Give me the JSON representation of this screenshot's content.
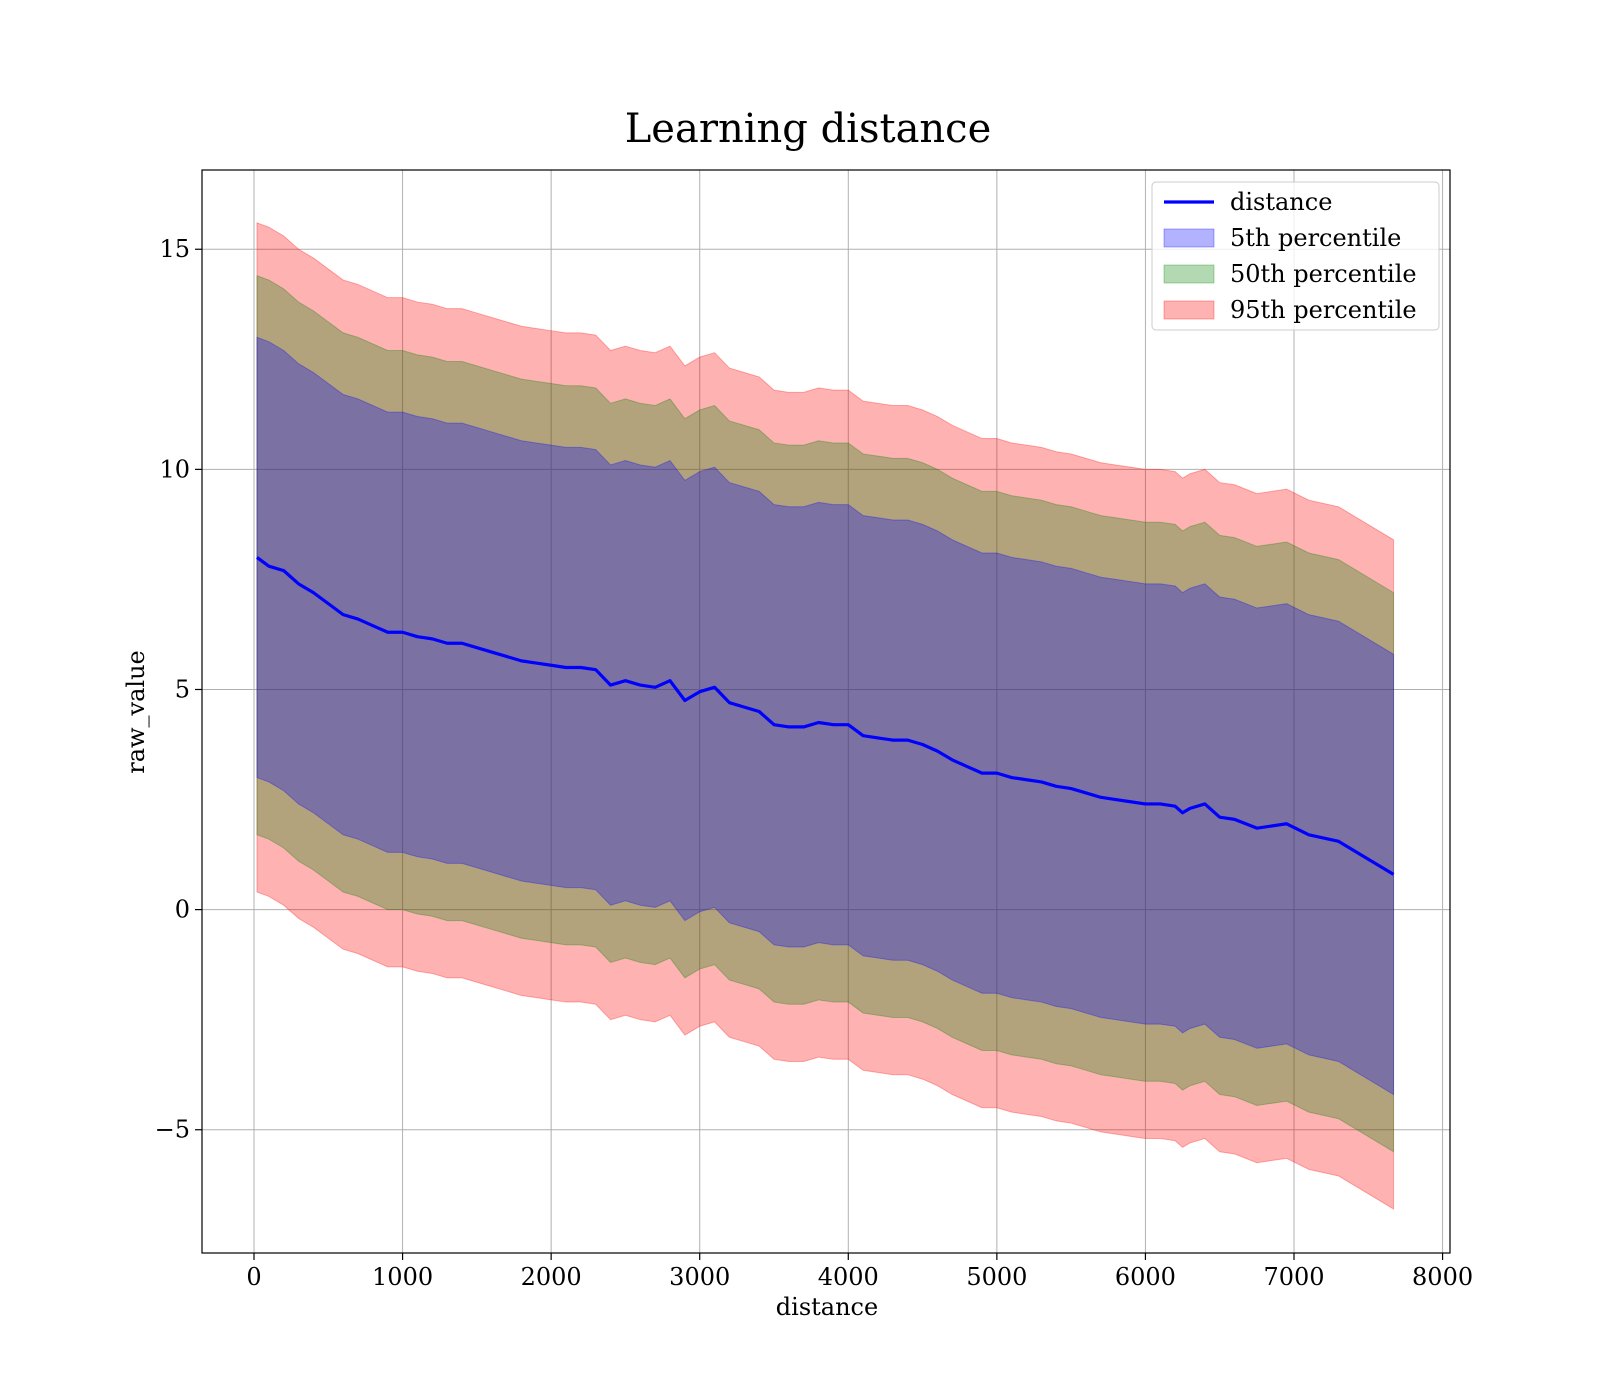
{
  "chart_data": {
    "type": "area",
    "title": "Learning distance",
    "xlabel": "distance",
    "ylabel": "raw_value",
    "xlim": [
      -350,
      8050
    ],
    "ylim": [
      -7.8,
      16.8
    ],
    "xticks": [
      0,
      1000,
      2000,
      3000,
      4000,
      5000,
      6000,
      7000,
      8000
    ],
    "xtick_labels": [
      "0",
      "1000",
      "2000",
      "3000",
      "4000",
      "5000",
      "6000",
      "7000",
      "8000"
    ],
    "yticks": [
      -5,
      0,
      5,
      10,
      15
    ],
    "ytick_labels": [
      "−5",
      "0",
      "5",
      "10",
      "15"
    ],
    "grid": true,
    "legend_position": "top-right",
    "legend": [
      {
        "label": "distance",
        "kind": "line",
        "color": "#0000ff"
      },
      {
        "label": "5th percentile",
        "kind": "patch",
        "color": "#0000ff"
      },
      {
        "label": "50th percentile",
        "kind": "patch",
        "color": "#008000"
      },
      {
        "label": "95th percentile",
        "kind": "patch",
        "color": "#ff0000"
      }
    ],
    "x": [
      20,
      100,
      200,
      300,
      400,
      500,
      600,
      700,
      800,
      900,
      1000,
      1100,
      1200,
      1300,
      1400,
      1500,
      1600,
      1700,
      1800,
      1900,
      2000,
      2100,
      2200,
      2300,
      2400,
      2500,
      2600,
      2700,
      2800,
      2900,
      3000,
      3100,
      3200,
      3300,
      3400,
      3500,
      3600,
      3700,
      3800,
      3900,
      4000,
      4100,
      4200,
      4300,
      4400,
      4500,
      4600,
      4700,
      4800,
      4900,
      5000,
      5100,
      5200,
      5300,
      5400,
      5500,
      5600,
      5700,
      5800,
      5900,
      6000,
      6100,
      6200,
      6250,
      6300,
      6400,
      6500,
      6600,
      6750,
      6950,
      7100,
      7300,
      7670
    ],
    "series": [
      {
        "name": "distance",
        "color": "#0000ff",
        "values": [
          8.0,
          7.8,
          7.7,
          7.4,
          7.2,
          6.95,
          6.7,
          6.6,
          6.45,
          6.3,
          6.3,
          6.2,
          6.15,
          6.05,
          6.05,
          5.95,
          5.85,
          5.75,
          5.65,
          5.6,
          5.55,
          5.5,
          5.5,
          5.45,
          5.1,
          5.2,
          5.1,
          5.05,
          5.2,
          4.75,
          4.95,
          5.05,
          4.7,
          4.6,
          4.5,
          4.2,
          4.15,
          4.15,
          4.25,
          4.2,
          4.2,
          3.95,
          3.9,
          3.85,
          3.85,
          3.75,
          3.6,
          3.4,
          3.25,
          3.1,
          3.1,
          3.0,
          2.95,
          2.9,
          2.8,
          2.75,
          2.65,
          2.55,
          2.5,
          2.45,
          2.4,
          2.4,
          2.35,
          2.2,
          2.3,
          2.4,
          2.1,
          2.05,
          1.85,
          1.95,
          1.7,
          1.55,
          0.8
        ]
      },
      {
        "name": "5th percentile",
        "color": "#0000ff",
        "upper": [
          13.0,
          12.9,
          12.7,
          12.4,
          12.2,
          11.95,
          11.7,
          11.6,
          11.45,
          11.3,
          11.3,
          11.2,
          11.15,
          11.05,
          11.05,
          10.95,
          10.85,
          10.75,
          10.65,
          10.6,
          10.55,
          10.5,
          10.5,
          10.45,
          10.1,
          10.2,
          10.1,
          10.05,
          10.2,
          9.75,
          9.95,
          10.05,
          9.7,
          9.6,
          9.5,
          9.2,
          9.15,
          9.15,
          9.25,
          9.2,
          9.2,
          8.95,
          8.9,
          8.85,
          8.85,
          8.75,
          8.6,
          8.4,
          8.25,
          8.1,
          8.1,
          8.0,
          7.95,
          7.9,
          7.8,
          7.75,
          7.65,
          7.55,
          7.5,
          7.45,
          7.4,
          7.4,
          7.35,
          7.2,
          7.3,
          7.4,
          7.1,
          7.05,
          6.85,
          6.95,
          6.7,
          6.55,
          5.8
        ],
        "lower": [
          3.0,
          2.9,
          2.7,
          2.4,
          2.2,
          1.95,
          1.7,
          1.6,
          1.45,
          1.3,
          1.3,
          1.2,
          1.15,
          1.05,
          1.05,
          0.95,
          0.85,
          0.75,
          0.65,
          0.6,
          0.55,
          0.5,
          0.5,
          0.45,
          0.1,
          0.2,
          0.1,
          0.05,
          0.2,
          -0.25,
          -0.05,
          0.05,
          -0.3,
          -0.4,
          -0.5,
          -0.8,
          -0.85,
          -0.85,
          -0.75,
          -0.8,
          -0.8,
          -1.05,
          -1.1,
          -1.15,
          -1.15,
          -1.25,
          -1.4,
          -1.6,
          -1.75,
          -1.9,
          -1.9,
          -2.0,
          -2.05,
          -2.1,
          -2.2,
          -2.25,
          -2.35,
          -2.45,
          -2.5,
          -2.55,
          -2.6,
          -2.6,
          -2.65,
          -2.8,
          -2.7,
          -2.6,
          -2.9,
          -2.95,
          -3.15,
          -3.05,
          -3.3,
          -3.45,
          -4.2
        ]
      },
      {
        "name": "50th percentile",
        "color": "#008000",
        "upper": [
          14.4,
          14.3,
          14.1,
          13.8,
          13.6,
          13.35,
          13.1,
          13.0,
          12.85,
          12.7,
          12.7,
          12.6,
          12.55,
          12.45,
          12.45,
          12.35,
          12.25,
          12.15,
          12.05,
          12.0,
          11.95,
          11.9,
          11.9,
          11.85,
          11.5,
          11.6,
          11.5,
          11.45,
          11.6,
          11.15,
          11.35,
          11.45,
          11.1,
          11.0,
          10.9,
          10.6,
          10.55,
          10.55,
          10.65,
          10.6,
          10.6,
          10.35,
          10.3,
          10.25,
          10.25,
          10.15,
          10.0,
          9.8,
          9.65,
          9.5,
          9.5,
          9.4,
          9.35,
          9.3,
          9.2,
          9.15,
          9.05,
          8.95,
          8.9,
          8.85,
          8.8,
          8.8,
          8.75,
          8.6,
          8.7,
          8.8,
          8.5,
          8.45,
          8.25,
          8.35,
          8.1,
          7.95,
          7.2
        ],
        "lower": [
          1.7,
          1.6,
          1.4,
          1.1,
          0.9,
          0.65,
          0.4,
          0.3,
          0.15,
          0.0,
          0.0,
          -0.1,
          -0.15,
          -0.25,
          -0.25,
          -0.35,
          -0.45,
          -0.55,
          -0.65,
          -0.7,
          -0.75,
          -0.8,
          -0.8,
          -0.85,
          -1.2,
          -1.1,
          -1.2,
          -1.25,
          -1.1,
          -1.55,
          -1.35,
          -1.25,
          -1.6,
          -1.7,
          -1.8,
          -2.1,
          -2.15,
          -2.15,
          -2.05,
          -2.1,
          -2.1,
          -2.35,
          -2.4,
          -2.45,
          -2.45,
          -2.55,
          -2.7,
          -2.9,
          -3.05,
          -3.2,
          -3.2,
          -3.3,
          -3.35,
          -3.4,
          -3.5,
          -3.55,
          -3.65,
          -3.75,
          -3.8,
          -3.85,
          -3.9,
          -3.9,
          -3.95,
          -4.1,
          -4.0,
          -3.9,
          -4.2,
          -4.25,
          -4.45,
          -4.35,
          -4.6,
          -4.75,
          -5.5
        ]
      },
      {
        "name": "95th percentile",
        "color": "#ff0000",
        "upper": [
          15.6,
          15.5,
          15.3,
          15.0,
          14.8,
          14.55,
          14.3,
          14.2,
          14.05,
          13.9,
          13.9,
          13.8,
          13.75,
          13.65,
          13.65,
          13.55,
          13.45,
          13.35,
          13.25,
          13.2,
          13.15,
          13.1,
          13.1,
          13.05,
          12.7,
          12.8,
          12.7,
          12.65,
          12.8,
          12.35,
          12.55,
          12.65,
          12.3,
          12.2,
          12.1,
          11.8,
          11.75,
          11.75,
          11.85,
          11.8,
          11.8,
          11.55,
          11.5,
          11.45,
          11.45,
          11.35,
          11.2,
          11.0,
          10.85,
          10.7,
          10.7,
          10.6,
          10.55,
          10.5,
          10.4,
          10.35,
          10.25,
          10.15,
          10.1,
          10.05,
          10.0,
          10.0,
          9.95,
          9.8,
          9.9,
          10.0,
          9.7,
          9.65,
          9.45,
          9.55,
          9.3,
          9.15,
          8.4
        ],
        "lower": [
          0.4,
          0.3,
          0.1,
          -0.2,
          -0.4,
          -0.65,
          -0.9,
          -1.0,
          -1.15,
          -1.3,
          -1.3,
          -1.4,
          -1.45,
          -1.55,
          -1.55,
          -1.65,
          -1.75,
          -1.85,
          -1.95,
          -2.0,
          -2.05,
          -2.1,
          -2.1,
          -2.15,
          -2.5,
          -2.4,
          -2.5,
          -2.55,
          -2.4,
          -2.85,
          -2.65,
          -2.55,
          -2.9,
          -3.0,
          -3.1,
          -3.4,
          -3.45,
          -3.45,
          -3.35,
          -3.4,
          -3.4,
          -3.65,
          -3.7,
          -3.75,
          -3.75,
          -3.85,
          -4.0,
          -4.2,
          -4.35,
          -4.5,
          -4.5,
          -4.6,
          -4.65,
          -4.7,
          -4.8,
          -4.85,
          -4.95,
          -5.05,
          -5.1,
          -5.15,
          -5.2,
          -5.2,
          -5.25,
          -5.4,
          -5.3,
          -5.2,
          -5.5,
          -5.55,
          -5.75,
          -5.65,
          -5.9,
          -6.05,
          -6.8
        ]
      }
    ]
  }
}
